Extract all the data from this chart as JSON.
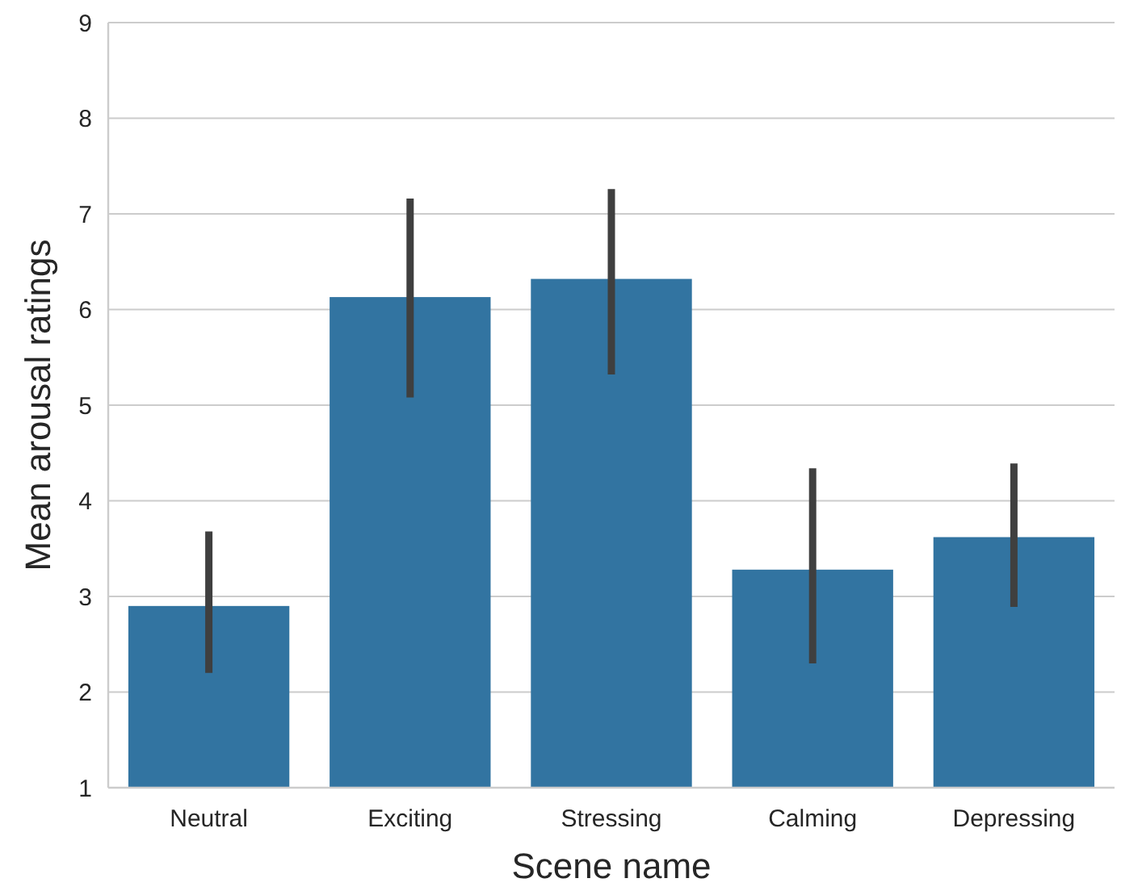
{
  "chart_data": {
    "type": "bar",
    "xlabel": "Scene name",
    "ylabel": "Mean arousal ratings",
    "categories": [
      "Neutral",
      "Exciting",
      "Stressing",
      "Calming",
      "Depressing"
    ],
    "values": [
      2.9,
      6.13,
      6.32,
      3.28,
      3.62
    ],
    "errors": [
      [
        2.2,
        3.68
      ],
      [
        5.08,
        7.16
      ],
      [
        5.32,
        7.26
      ],
      [
        2.3,
        4.34
      ],
      [
        2.89,
        4.39
      ]
    ],
    "color": "#3274a1",
    "ylim": [
      1,
      9
    ],
    "yticks": [
      1,
      2,
      3,
      4,
      5,
      6,
      7,
      8,
      9
    ],
    "grid": "y"
  }
}
